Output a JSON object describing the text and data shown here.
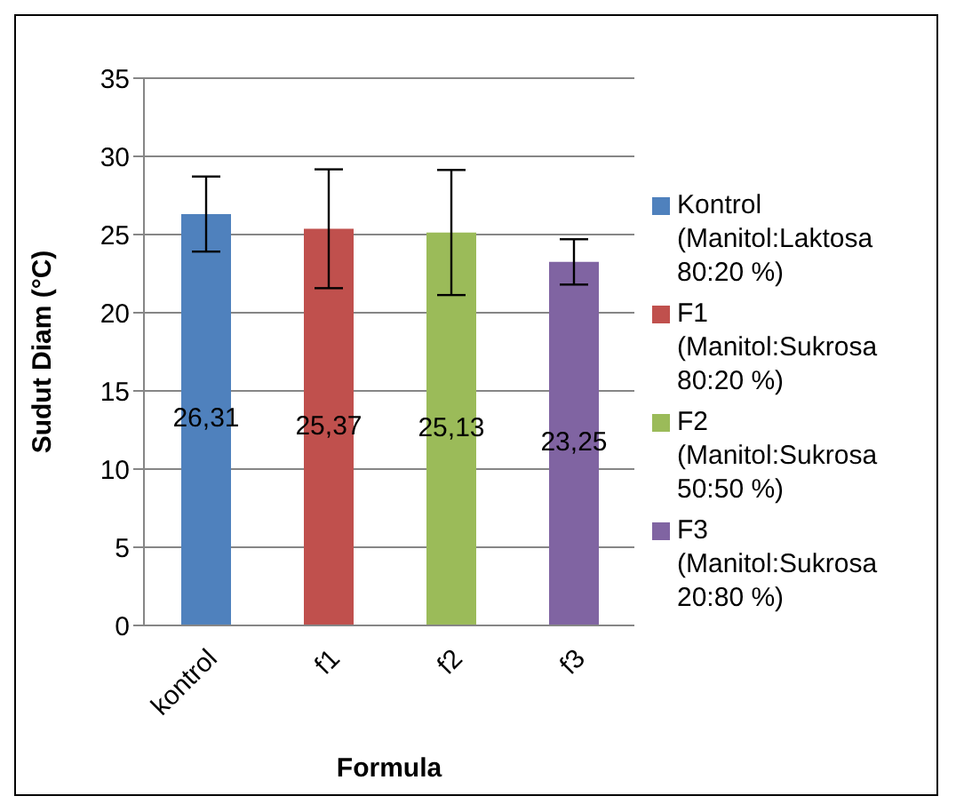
{
  "chart_data": {
    "type": "bar",
    "xlabel": "Formula",
    "ylabel": "Sudut Diam (°C)",
    "categories": [
      "kontrol",
      "f1",
      "f2",
      "f3"
    ],
    "stacked": true,
    "ylim": [
      0,
      35
    ],
    "yticks": [
      0,
      5,
      10,
      15,
      20,
      25,
      30,
      35
    ],
    "grid": "y",
    "legend": "right",
    "series": [
      {
        "name": "Kontrol (Manitol:Laktosa 80:20 %)",
        "color": "#4f81bd",
        "values": [
          26.31,
          null,
          null,
          null
        ],
        "errors": [
          2.4,
          null,
          null,
          null
        ],
        "value_labels": [
          "26,31",
          null,
          null,
          null
        ]
      },
      {
        "name": "F1 (Manitol:Sukrosa 80:20 %)",
        "color": "#c0504d",
        "values": [
          null,
          25.37,
          null,
          null
        ],
        "errors": [
          null,
          3.8,
          null,
          null
        ],
        "value_labels": [
          null,
          "25,37",
          null,
          null
        ]
      },
      {
        "name": "F2 (Manitol:Sukrosa 50:50 %)",
        "color": "#9bbb59",
        "values": [
          null,
          null,
          25.13,
          null
        ],
        "errors": [
          null,
          null,
          4,
          null
        ],
        "value_labels": [
          null,
          null,
          "25,13",
          null
        ]
      },
      {
        "name": "F3 (Manitol:Sukrosa 20:80 %)",
        "color": "#8064a2",
        "values": [
          null,
          null,
          null,
          23.25
        ],
        "errors": [
          null,
          null,
          null,
          1.45
        ],
        "value_labels": [
          null,
          null,
          null,
          "23,25"
        ]
      }
    ]
  }
}
